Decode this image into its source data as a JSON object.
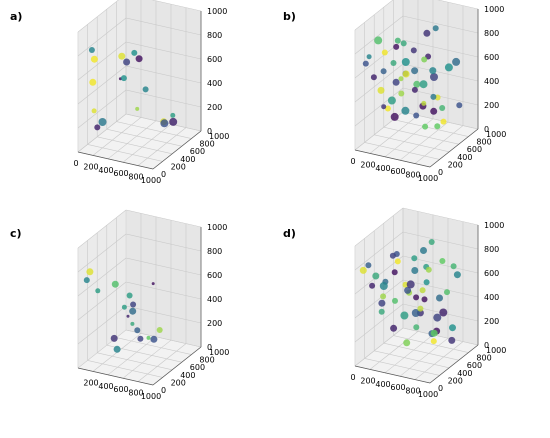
{
  "figure": {
    "grid": true,
    "axis_kind": "3d-scatter",
    "colormap": [
      "#440154",
      "#3b528b",
      "#21918c",
      "#5ec962",
      "#fde725"
    ]
  },
  "chart_data": [
    {
      "type": "scatter",
      "panel_label": "a)",
      "x_ticks": [
        "0",
        "200",
        "400",
        "600",
        "800",
        "1000"
      ],
      "y_ticks": [
        "0",
        "200",
        "400",
        "600",
        "800",
        "1000"
      ],
      "z_ticks": [
        "0",
        "200",
        "400",
        "600",
        "800",
        "1000"
      ],
      "xlim": [
        0,
        1000
      ],
      "ylim": [
        0,
        1000
      ],
      "zlim": [
        0,
        1000
      ],
      "points": [
        {
          "x": 160,
          "y": 40,
          "z": 860,
          "c": 0.45,
          "s": 3.0
        },
        {
          "x": 180,
          "y": 60,
          "z": 780,
          "c": 0.98,
          "s": 3.5
        },
        {
          "x": 120,
          "y": 120,
          "z": 560,
          "c": 0.98,
          "s": 3.5
        },
        {
          "x": 100,
          "y": 180,
          "z": 300,
          "c": 0.95,
          "s": 2.5
        },
        {
          "x": 160,
          "y": 260,
          "z": 190,
          "c": 0.4,
          "s": 4.0
        },
        {
          "x": 130,
          "y": 200,
          "z": 160,
          "c": 0.1,
          "s": 3.0
        },
        {
          "x": 520,
          "y": 100,
          "z": 840,
          "c": 0.95,
          "s": 3.5
        },
        {
          "x": 520,
          "y": 200,
          "z": 760,
          "c": 0.2,
          "s": 3.5
        },
        {
          "x": 420,
          "y": 300,
          "z": 580,
          "c": 0.5,
          "s": 3.0
        },
        {
          "x": 360,
          "y": 320,
          "z": 560,
          "c": 0.05,
          "s": 1.5
        },
        {
          "x": 700,
          "y": 80,
          "z": 900,
          "c": 0.5,
          "s": 3.0
        },
        {
          "x": 700,
          "y": 180,
          "z": 820,
          "c": 0.05,
          "s": 3.5
        },
        {
          "x": 760,
          "y": 220,
          "z": 560,
          "c": 0.45,
          "s": 3.0
        },
        {
          "x": 520,
          "y": 420,
          "z": 300,
          "c": 0.85,
          "s": 2.0
        },
        {
          "x": 960,
          "y": 300,
          "z": 280,
          "c": 0.25,
          "s": 4.0
        },
        {
          "x": 900,
          "y": 380,
          "z": 260,
          "c": 0.95,
          "s": 3.5
        },
        {
          "x": 880,
          "y": 600,
          "z": 240,
          "c": 0.55,
          "s": 2.5
        },
        {
          "x": 860,
          "y": 640,
          "z": 170,
          "c": 0.1,
          "s": 4.0
        }
      ]
    },
    {
      "type": "scatter",
      "panel_label": "b)",
      "x_ticks": [
        "0",
        "200",
        "400",
        "600",
        "800",
        "1000"
      ],
      "y_ticks": [
        "0",
        "200",
        "400",
        "600",
        "800",
        "1000"
      ],
      "z_ticks": [
        "0",
        "200",
        "400",
        "600",
        "800",
        "1000"
      ],
      "xlim": [
        0,
        1000
      ],
      "ylim": [
        0,
        1000
      ],
      "zlim": [
        0,
        1000
      ],
      "points": [
        {
          "x": 80,
          "y": 100,
          "z": 700,
          "c": 0.25,
          "s": 3.0
        },
        {
          "x": 150,
          "y": 60,
          "z": 780,
          "c": 0.45,
          "s": 2.5
        },
        {
          "x": 220,
          "y": 140,
          "z": 900,
          "c": 0.7,
          "s": 4.0
        },
        {
          "x": 60,
          "y": 300,
          "z": 520,
          "c": 0.1,
          "s": 3.0
        },
        {
          "x": 180,
          "y": 260,
          "z": 440,
          "c": 0.95,
          "s": 3.5
        },
        {
          "x": 240,
          "y": 220,
          "z": 620,
          "c": 0.3,
          "s": 3.0
        },
        {
          "x": 320,
          "y": 120,
          "z": 820,
          "c": 0.98,
          "s": 3.0
        },
        {
          "x": 300,
          "y": 300,
          "z": 360,
          "c": 0.55,
          "s": 4.0
        },
        {
          "x": 140,
          "y": 380,
          "z": 260,
          "c": 0.15,
          "s": 2.5
        },
        {
          "x": 260,
          "y": 420,
          "z": 180,
          "c": 0.05,
          "s": 4.0
        },
        {
          "x": 360,
          "y": 240,
          "z": 700,
          "c": 0.6,
          "s": 3.0
        },
        {
          "x": 420,
          "y": 200,
          "z": 560,
          "c": 0.2,
          "s": 3.5
        },
        {
          "x": 400,
          "y": 340,
          "z": 420,
          "c": 0.85,
          "s": 3.0
        },
        {
          "x": 460,
          "y": 140,
          "z": 880,
          "c": 0.05,
          "s": 3.0
        },
        {
          "x": 480,
          "y": 300,
          "z": 300,
          "c": 0.45,
          "s": 4.0
        },
        {
          "x": 520,
          "y": 80,
          "z": 960,
          "c": 0.65,
          "s": 3.0
        },
        {
          "x": 540,
          "y": 220,
          "z": 640,
          "c": 0.95,
          "s": 3.5
        },
        {
          "x": 560,
          "y": 400,
          "z": 240,
          "c": 0.25,
          "s": 3.0
        },
        {
          "x": 600,
          "y": 120,
          "z": 780,
          "c": 0.5,
          "s": 4.0
        },
        {
          "x": 620,
          "y": 280,
          "z": 500,
          "c": 0.1,
          "s": 3.0
        },
        {
          "x": 640,
          "y": 460,
          "z": 140,
          "c": 0.75,
          "s": 3.0
        },
        {
          "x": 680,
          "y": 180,
          "z": 700,
          "c": 0.35,
          "s": 3.5
        },
        {
          "x": 700,
          "y": 340,
          "z": 380,
          "c": 0.9,
          "s": 2.5
        },
        {
          "x": 720,
          "y": 100,
          "z": 900,
          "c": 0.15,
          "s": 3.0
        },
        {
          "x": 760,
          "y": 240,
          "z": 580,
          "c": 0.55,
          "s": 4.0
        },
        {
          "x": 780,
          "y": 420,
          "z": 300,
          "c": 0.05,
          "s": 3.5
        },
        {
          "x": 820,
          "y": 160,
          "z": 820,
          "c": 0.8,
          "s": 3.0
        },
        {
          "x": 840,
          "y": 320,
          "z": 460,
          "c": 0.4,
          "s": 3.0
        },
        {
          "x": 860,
          "y": 500,
          "z": 200,
          "c": 0.98,
          "s": 3.0
        },
        {
          "x": 900,
          "y": 240,
          "z": 660,
          "c": 0.2,
          "s": 4.0
        },
        {
          "x": 920,
          "y": 380,
          "z": 360,
          "c": 0.65,
          "s": 3.0
        },
        {
          "x": 960,
          "y": 120,
          "z": 760,
          "c": 0.45,
          "s": 3.5
        },
        {
          "x": 340,
          "y": 520,
          "z": 520,
          "c": 0.3,
          "s": 3.0
        },
        {
          "x": 440,
          "y": 600,
          "z": 420,
          "c": 0.7,
          "s": 3.5
        },
        {
          "x": 540,
          "y": 680,
          "z": 640,
          "c": 0.1,
          "s": 3.0
        },
        {
          "x": 640,
          "y": 720,
          "z": 300,
          "c": 0.95,
          "s": 3.0
        },
        {
          "x": 740,
          "y": 800,
          "z": 540,
          "c": 0.5,
          "s": 4.0
        },
        {
          "x": 840,
          "y": 860,
          "z": 220,
          "c": 0.25,
          "s": 3.0
        },
        {
          "x": 240,
          "y": 640,
          "z": 720,
          "c": 0.6,
          "s": 3.0
        },
        {
          "x": 140,
          "y": 740,
          "z": 380,
          "c": 0.85,
          "s": 2.5
        },
        {
          "x": 380,
          "y": 820,
          "z": 160,
          "c": 0.05,
          "s": 3.5
        },
        {
          "x": 500,
          "y": 900,
          "z": 800,
          "c": 0.4,
          "s": 3.0
        },
        {
          "x": 600,
          "y": 560,
          "z": 880,
          "c": 0.15,
          "s": 3.5
        },
        {
          "x": 700,
          "y": 620,
          "z": 100,
          "c": 0.75,
          "s": 3.0
        },
        {
          "x": 900,
          "y": 700,
          "z": 640,
          "c": 0.35,
          "s": 4.0
        },
        {
          "x": 80,
          "y": 560,
          "z": 180,
          "c": 0.98,
          "s": 3.0
        }
      ]
    },
    {
      "type": "scatter",
      "panel_label": "c)",
      "x_ticks": [
        "200",
        "400",
        "600",
        "800",
        "1000"
      ],
      "y_ticks": [
        "0",
        "200",
        "400",
        "600",
        "800",
        "1000"
      ],
      "z_ticks": [
        "0",
        "200",
        "400",
        "600",
        "800",
        "1000"
      ],
      "xlim": [
        0,
        1000
      ],
      "ylim": [
        0,
        1000
      ],
      "zlim": [
        0,
        1000
      ],
      "points": [
        {
          "x": 120,
          "y": 60,
          "z": 800,
          "c": 0.95,
          "s": 3.5
        },
        {
          "x": 40,
          "y": 120,
          "z": 700,
          "c": 0.45,
          "s": 3.0
        },
        {
          "x": 200,
          "y": 100,
          "z": 640,
          "c": 0.55,
          "s": 2.5
        },
        {
          "x": 420,
          "y": 120,
          "z": 720,
          "c": 0.7,
          "s": 3.5
        },
        {
          "x": 560,
          "y": 200,
          "z": 620,
          "c": 0.55,
          "s": 3.0
        },
        {
          "x": 620,
          "y": 180,
          "z": 560,
          "c": 0.2,
          "s": 3.0
        },
        {
          "x": 640,
          "y": 140,
          "z": 520,
          "c": 0.35,
          "s": 3.5
        },
        {
          "x": 440,
          "y": 280,
          "z": 480,
          "c": 0.55,
          "s": 2.5
        },
        {
          "x": 500,
          "y": 260,
          "z": 420,
          "c": 0.1,
          "s": 1.5
        },
        {
          "x": 520,
          "y": 320,
          "z": 340,
          "c": 0.6,
          "s": 2.0
        },
        {
          "x": 640,
          "y": 300,
          "z": 240,
          "c": 0.2,
          "s": 3.0
        },
        {
          "x": 560,
          "y": 360,
          "z": 280,
          "c": 0.3,
          "s": 3.0
        },
        {
          "x": 380,
          "y": 220,
          "z": 140,
          "c": 0.45,
          "s": 3.5
        },
        {
          "x": 240,
          "y": 380,
          "z": 160,
          "c": 0.15,
          "s": 3.5
        },
        {
          "x": 620,
          "y": 500,
          "z": 180,
          "c": 0.75,
          "s": 2.0
        },
        {
          "x": 820,
          "y": 300,
          "z": 260,
          "c": 0.25,
          "s": 3.5
        },
        {
          "x": 900,
          "y": 160,
          "z": 780,
          "c": 0.05,
          "s": 1.5
        },
        {
          "x": 820,
          "y": 420,
          "z": 300,
          "c": 0.85,
          "s": 3.0
        }
      ]
    },
    {
      "type": "scatter",
      "panel_label": "d)",
      "x_ticks": [
        "0",
        "200",
        "400",
        "600",
        "800",
        "1000"
      ],
      "y_ticks": [
        "0",
        "200",
        "400",
        "600",
        "800",
        "1000"
      ],
      "z_ticks": [
        "0",
        "200",
        "400",
        "600",
        "800",
        "1000"
      ],
      "xlim": [
        0,
        1000
      ],
      "ylim": [
        0,
        1000
      ],
      "zlim": [
        0,
        1000
      ],
      "points": [
        {
          "x": 60,
          "y": 80,
          "z": 780,
          "c": 0.95,
          "s": 3.5
        },
        {
          "x": 140,
          "y": 60,
          "z": 840,
          "c": 0.3,
          "s": 3.0
        },
        {
          "x": 200,
          "y": 120,
          "z": 740,
          "c": 0.6,
          "s": 3.5
        },
        {
          "x": 100,
          "y": 200,
          "z": 620,
          "c": 0.1,
          "s": 3.0
        },
        {
          "x": 260,
          "y": 180,
          "z": 560,
          "c": 0.85,
          "s": 3.0
        },
        {
          "x": 320,
          "y": 100,
          "z": 680,
          "c": 0.45,
          "s": 4.0
        },
        {
          "x": 180,
          "y": 280,
          "z": 460,
          "c": 0.2,
          "s": 3.5
        },
        {
          "x": 380,
          "y": 240,
          "z": 520,
          "c": 0.7,
          "s": 3.0
        },
        {
          "x": 440,
          "y": 140,
          "z": 800,
          "c": 0.05,
          "s": 3.0
        },
        {
          "x": 480,
          "y": 280,
          "z": 400,
          "c": 0.55,
          "s": 4.0
        },
        {
          "x": 520,
          "y": 80,
          "z": 920,
          "c": 0.98,
          "s": 3.0
        },
        {
          "x": 560,
          "y": 220,
          "z": 640,
          "c": 0.25,
          "s": 3.5
        },
        {
          "x": 600,
          "y": 340,
          "z": 300,
          "c": 0.65,
          "s": 3.0
        },
        {
          "x": 640,
          "y": 160,
          "z": 720,
          "c": 0.15,
          "s": 4.0
        },
        {
          "x": 680,
          "y": 300,
          "z": 480,
          "c": 0.9,
          "s": 3.0
        },
        {
          "x": 720,
          "y": 120,
          "z": 860,
          "c": 0.4,
          "s": 3.5
        },
        {
          "x": 760,
          "y": 260,
          "z": 580,
          "c": 0.05,
          "s": 3.0
        },
        {
          "x": 800,
          "y": 400,
          "z": 260,
          "c": 0.75,
          "s": 3.5
        },
        {
          "x": 840,
          "y": 180,
          "z": 760,
          "c": 0.5,
          "s": 3.0
        },
        {
          "x": 880,
          "y": 340,
          "z": 420,
          "c": 0.2,
          "s": 4.0
        },
        {
          "x": 920,
          "y": 100,
          "z": 900,
          "c": 0.85,
          "s": 3.0
        },
        {
          "x": 960,
          "y": 260,
          "z": 620,
          "c": 0.35,
          "s": 3.5
        },
        {
          "x": 100,
          "y": 400,
          "z": 340,
          "c": 0.6,
          "s": 3.0
        },
        {
          "x": 220,
          "y": 460,
          "z": 200,
          "c": 0.1,
          "s": 3.5
        },
        {
          "x": 340,
          "y": 520,
          "z": 560,
          "c": 0.95,
          "s": 3.0
        },
        {
          "x": 440,
          "y": 580,
          "z": 320,
          "c": 0.3,
          "s": 4.0
        },
        {
          "x": 540,
          "y": 640,
          "z": 700,
          "c": 0.55,
          "s": 3.0
        },
        {
          "x": 640,
          "y": 700,
          "z": 160,
          "c": 0.05,
          "s": 3.5
        },
        {
          "x": 740,
          "y": 760,
          "z": 480,
          "c": 0.7,
          "s": 3.0
        },
        {
          "x": 840,
          "y": 820,
          "z": 620,
          "c": 0.45,
          "s": 3.5
        },
        {
          "x": 160,
          "y": 620,
          "z": 760,
          "c": 0.25,
          "s": 3.0
        },
        {
          "x": 260,
          "y": 720,
          "z": 420,
          "c": 0.85,
          "s": 3.0
        },
        {
          "x": 360,
          "y": 800,
          "z": 240,
          "c": 0.15,
          "s": 3.5
        },
        {
          "x": 460,
          "y": 880,
          "z": 820,
          "c": 0.6,
          "s": 3.0
        },
        {
          "x": 580,
          "y": 520,
          "z": 880,
          "c": 0.4,
          "s": 3.5
        },
        {
          "x": 680,
          "y": 580,
          "z": 120,
          "c": 0.98,
          "s": 3.0
        },
        {
          "x": 780,
          "y": 620,
          "z": 360,
          "c": 0.1,
          "s": 4.0
        },
        {
          "x": 880,
          "y": 680,
          "z": 740,
          "c": 0.65,
          "s": 3.0
        },
        {
          "x": 60,
          "y": 540,
          "z": 540,
          "c": 0.35,
          "s": 3.0
        },
        {
          "x": 980,
          "y": 500,
          "z": 300,
          "c": 0.5,
          "s": 3.5
        },
        {
          "x": 300,
          "y": 320,
          "z": 860,
          "c": 0.2,
          "s": 3.0
        },
        {
          "x": 420,
          "y": 420,
          "z": 120,
          "c": 0.8,
          "s": 3.5
        },
        {
          "x": 520,
          "y": 460,
          "z": 500,
          "c": 0.05,
          "s": 3.0
        },
        {
          "x": 620,
          "y": 440,
          "z": 580,
          "c": 0.9,
          "s": 3.0
        },
        {
          "x": 720,
          "y": 480,
          "z": 220,
          "c": 0.3,
          "s": 3.5
        },
        {
          "x": 820,
          "y": 540,
          "z": 820,
          "c": 0.75,
          "s": 3.0
        },
        {
          "x": 920,
          "y": 580,
          "z": 160,
          "c": 0.15,
          "s": 3.5
        },
        {
          "x": 240,
          "y": 860,
          "z": 660,
          "c": 0.55,
          "s": 3.0
        }
      ]
    }
  ]
}
